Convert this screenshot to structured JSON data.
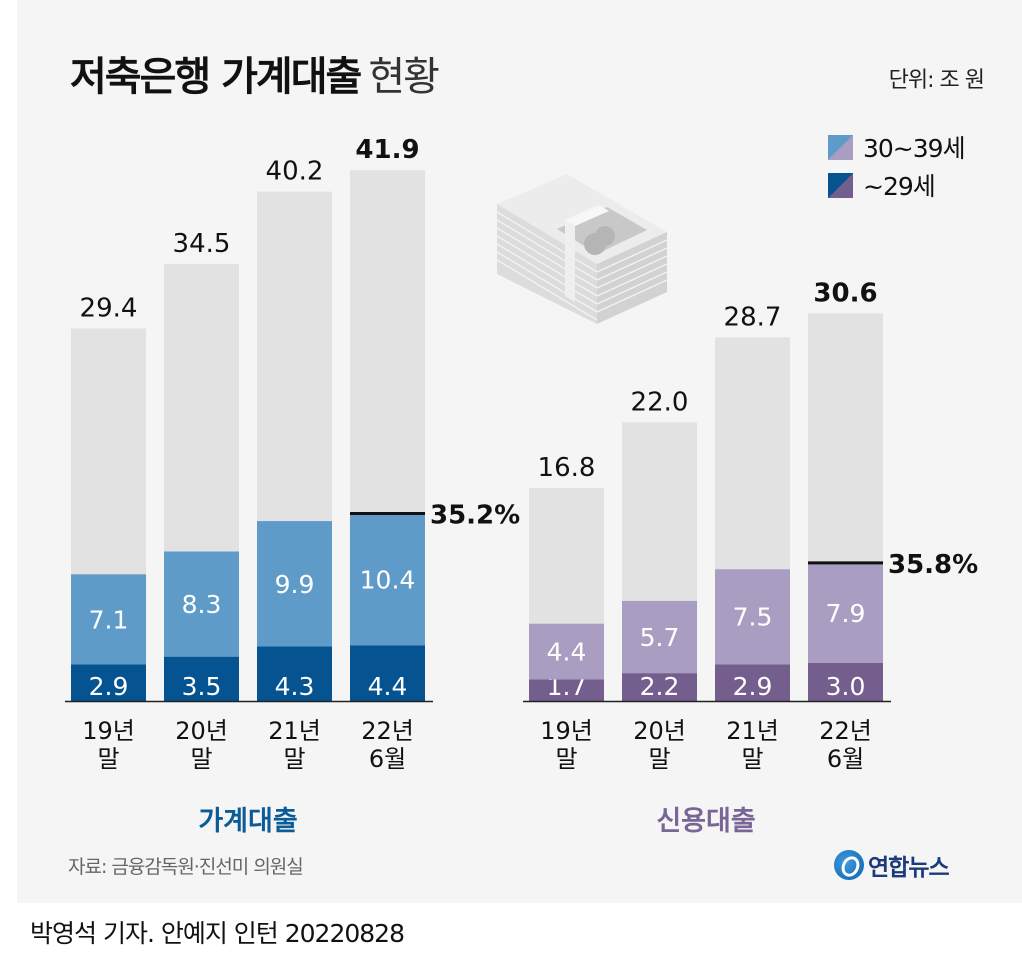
{
  "header": {
    "title_bold": "저축은행 가계대출",
    "title_light": "현황",
    "unit": "단위: 조 원"
  },
  "legend": [
    {
      "label": "30~39세",
      "colors": [
        "#5f9bc8",
        "#a99ec2"
      ]
    },
    {
      "label": "~29세",
      "colors": [
        "#055491",
        "#745e8d"
      ]
    }
  ],
  "chart_data": [
    {
      "type": "bar",
      "stacked": true,
      "title": "가계대출",
      "categories": [
        [
          "19년",
          "말"
        ],
        [
          "20년",
          "말"
        ],
        [
          "21년",
          "말"
        ],
        [
          "22년",
          "6월"
        ]
      ],
      "totals": [
        29.4,
        34.5,
        40.2,
        41.9
      ],
      "total_labels": [
        "29.4",
        "34.5",
        "40.2",
        "41.9"
      ],
      "series": [
        {
          "name": "~29세",
          "values": [
            2.9,
            3.5,
            4.3,
            4.4
          ],
          "labels": [
            "2.9",
            "3.5",
            "4.3",
            "4.4"
          ],
          "color": "#055491"
        },
        {
          "name": "30~39세",
          "values": [
            7.1,
            8.3,
            9.9,
            10.4
          ],
          "labels": [
            "7.1",
            "8.3",
            "9.9",
            "10.4"
          ],
          "color": "#5f9bc8"
        }
      ],
      "total_color": "#e2e2e2",
      "title_color": "#0b5b99",
      "annotation": {
        "category_index": 3,
        "text": "35.2%"
      },
      "highlight_index": 3,
      "ylim": [
        0,
        45
      ]
    },
    {
      "type": "bar",
      "stacked": true,
      "title": "신용대출",
      "categories": [
        [
          "19년",
          "말"
        ],
        [
          "20년",
          "말"
        ],
        [
          "21년",
          "말"
        ],
        [
          "22년",
          "6월"
        ]
      ],
      "totals": [
        16.8,
        22.0,
        28.7,
        30.6
      ],
      "total_labels": [
        "16.8",
        "22.0",
        "28.7",
        "30.6"
      ],
      "series": [
        {
          "name": "~29세",
          "values": [
            1.7,
            2.2,
            2.9,
            3.0
          ],
          "labels": [
            "1.7",
            "2.2",
            "2.9",
            "3.0"
          ],
          "color": "#745e8d"
        },
        {
          "name": "30~39세",
          "values": [
            4.4,
            5.7,
            7.5,
            7.9
          ],
          "labels": [
            "4.4",
            "5.7",
            "7.5",
            "7.9"
          ],
          "color": "#a99ec2"
        }
      ],
      "total_color": "#e2e2e2",
      "title_color": "#7a6597",
      "annotation": {
        "category_index": 3,
        "text": "35.8%"
      },
      "highlight_index": 3,
      "ylim": [
        0,
        45
      ]
    }
  ],
  "footer": {
    "source": "자료: 금융감독원·진선미 의원실",
    "logo_text": "연합뉴스",
    "byline": "박영석 기자. 안예지 인턴  20220828"
  }
}
